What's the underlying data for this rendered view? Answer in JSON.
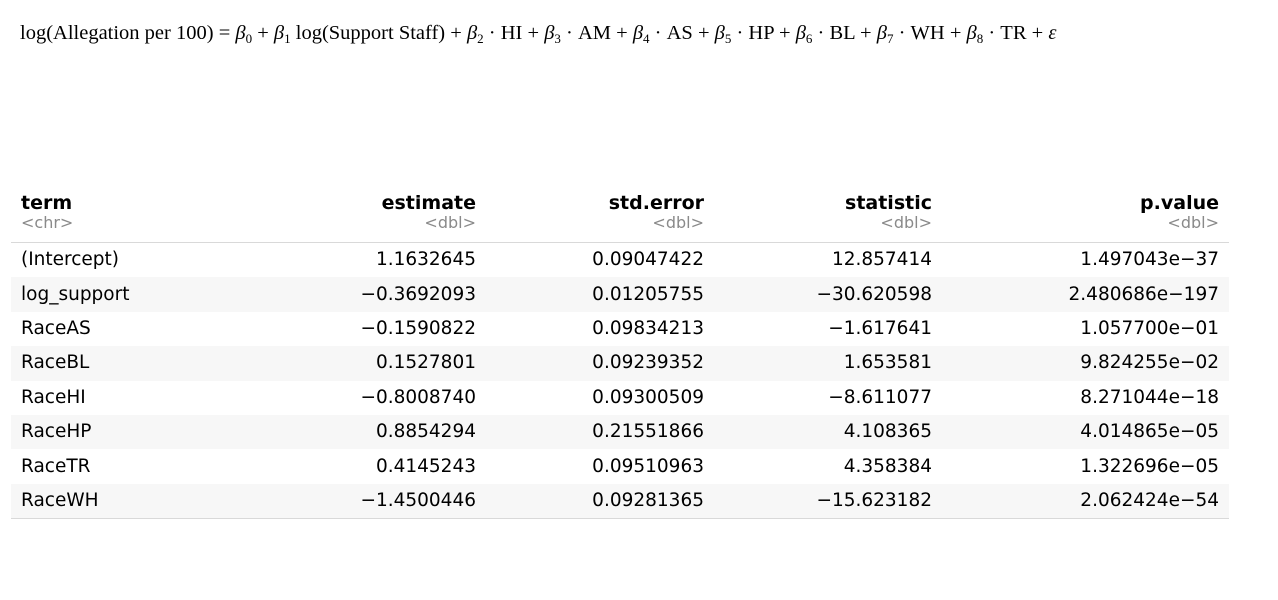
{
  "equation": {
    "lhs": "log(Allegation per 100)",
    "rhs": "β0 + β1 log(Support Staff) + β2 · HI + β3 · AM + β4 · AS + β5 · HP + β6 · BL + β7 · WH + β8 · TR + ε"
  },
  "table": {
    "columns": [
      {
        "name": "term",
        "type": "<chr>",
        "align": "left"
      },
      {
        "name": "estimate",
        "type": "<dbl>",
        "align": "right"
      },
      {
        "name": "std.error",
        "type": "<dbl>",
        "align": "right"
      },
      {
        "name": "statistic",
        "type": "<dbl>",
        "align": "right"
      },
      {
        "name": "p.value",
        "type": "<dbl>",
        "align": "right"
      }
    ],
    "rows": [
      [
        "(Intercept)",
        "1.1632645",
        "0.09047422",
        "12.857414",
        "1.497043e−37"
      ],
      [
        "log_support",
        "−0.3692093",
        "0.01205755",
        "−30.620598",
        "2.480686e−197"
      ],
      [
        "RaceAS",
        "−0.1590822",
        "0.09834213",
        "−1.617641",
        "1.057700e−01"
      ],
      [
        "RaceBL",
        "0.1527801",
        "0.09239352",
        "1.653581",
        "9.824255e−02"
      ],
      [
        "RaceHI",
        "−0.8008740",
        "0.09300509",
        "−8.611077",
        "8.271044e−18"
      ],
      [
        "RaceHP",
        "0.8854294",
        "0.21551866",
        "4.108365",
        "4.014865e−05"
      ],
      [
        "RaceTR",
        "0.4145243",
        "0.09510963",
        "4.358384",
        "1.322696e−05"
      ],
      [
        "RaceWH",
        "−1.4500446",
        "0.09281365",
        "−15.623182",
        "2.062424e−54"
      ]
    ]
  },
  "colors": {
    "type_text": "#8a8a8a",
    "stripe": "#f7f7f7",
    "rule": "#d9d9d9"
  }
}
